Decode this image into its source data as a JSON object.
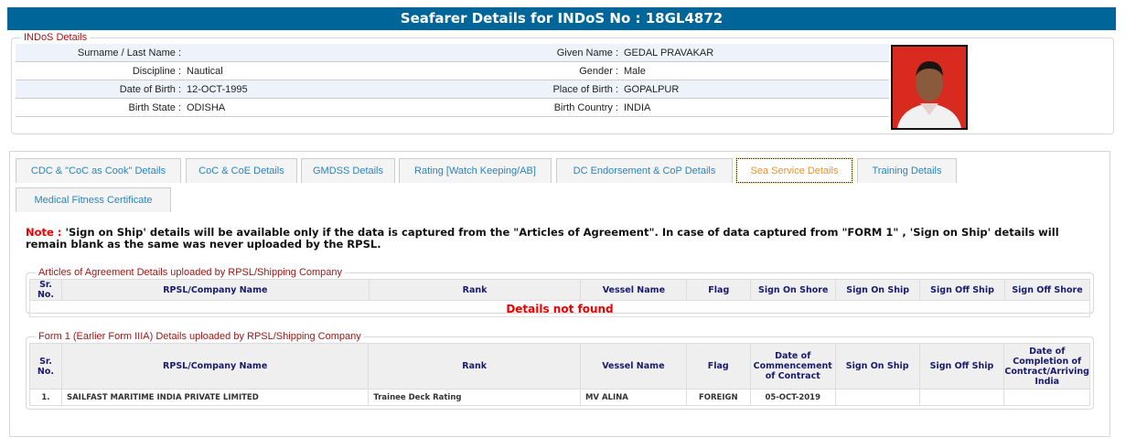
{
  "header": {
    "title": "Seafarer Details for INDoS No : 18GL4872"
  },
  "indos": {
    "legend": "INDoS Details",
    "rows": [
      {
        "l1": "Surname / Last Name :",
        "v1": "",
        "l2": "Given Name :",
        "v2": "GEDAL PRAVAKAR"
      },
      {
        "l1": "Discipline :",
        "v1": "Nautical",
        "l2": "Gender :",
        "v2": "Male"
      },
      {
        "l1": "Date of Birth :",
        "v1": "12-OCT-1995",
        "l2": "Place of Birth :",
        "v2": "GOPALPUR"
      },
      {
        "l1": "Birth State :",
        "v1": "ODISHA",
        "l2": "Birth Country :",
        "v2": "INDIA"
      }
    ]
  },
  "tabs": [
    "CDC & \"CoC as Cook\" Details",
    "CoC & CoE Details",
    "GMDSS Details",
    "Rating [Watch Keeping/AB]",
    "DC Endorsement & CoP Details",
    "Sea Service Details",
    "Training Details",
    "Medical Fitness Certificate"
  ],
  "active_tab": "Sea Service Details",
  "note": {
    "label": "Note :",
    "text": " 'Sign on Ship' details will be available only if the data is captured from the \"Articles of Agreement\". In case of data captured from \"FORM 1\" , 'Sign on Ship' details will remain blank as the same was never uploaded by the RPSL."
  },
  "aoa": {
    "legend": "Articles of Agreement Details uploaded by RPSL/Shipping Company",
    "headers": [
      "Sr. No.",
      "RPSL/Company Name",
      "Rank",
      "Vessel Name",
      "Flag",
      "Sign On Shore",
      "Sign On Ship",
      "Sign Off Ship",
      "Sign Off Shore"
    ],
    "empty": "Details not found"
  },
  "form1": {
    "legend": "Form 1 (Earlier Form IIIA) Details uploaded by RPSL/Shipping Company",
    "headers": [
      "Sr. No.",
      "RPSL/Company Name",
      "Rank",
      "Vessel Name",
      "Flag",
      "Date of Commencement of Contract",
      "Sign On Ship",
      "Sign Off Ship",
      "Date of Completion of Contract/Arriving India"
    ],
    "rows": [
      [
        "1.",
        "SAILFAST MARITIME INDIA PRIVATE LIMITED",
        "Trainee Deck Rating",
        "MV ALINA",
        "FOREIGN",
        "05-OCT-2019",
        "",
        "",
        ""
      ]
    ]
  }
}
